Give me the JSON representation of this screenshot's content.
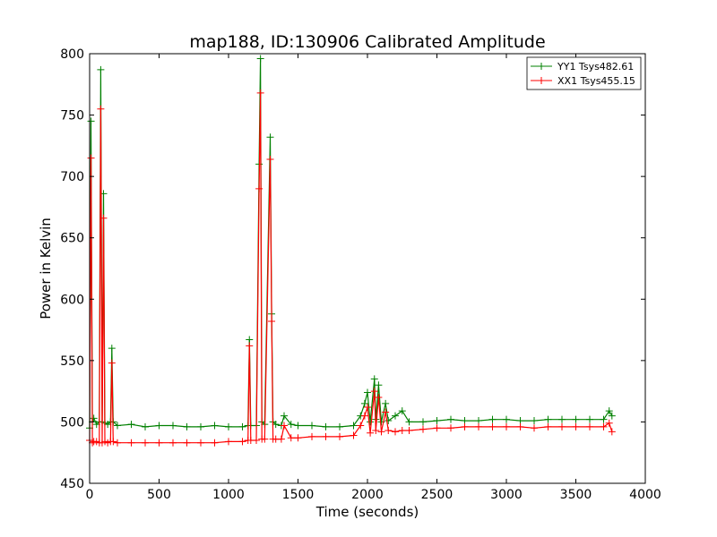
{
  "chart_data": {
    "type": "line",
    "title": "map188, ID:130906 Calibrated Amplitude",
    "xlabel": "Time (seconds)",
    "ylabel": "Power in Kelvin",
    "xlim": [
      0,
      4000
    ],
    "ylim": [
      450,
      800
    ],
    "xticks": [
      "0",
      "500",
      "1000",
      "1500",
      "2000",
      "2500",
      "3000",
      "3500",
      "4000"
    ],
    "yticks": [
      "450",
      "500",
      "550",
      "600",
      "650",
      "700",
      "750",
      "800"
    ],
    "grid": false,
    "legend_position": "top-right",
    "marker": "plus",
    "series": [
      {
        "name": "YY1 Tsys482.61",
        "color": "#008000",
        "x": [
          0,
          10,
          20,
          30,
          50,
          70,
          80,
          90,
          100,
          110,
          130,
          150,
          160,
          170,
          200,
          300,
          400,
          500,
          600,
          700,
          800,
          900,
          1000,
          1100,
          1140,
          1150,
          1160,
          1200,
          1220,
          1230,
          1240,
          1260,
          1300,
          1310,
          1320,
          1340,
          1380,
          1400,
          1450,
          1500,
          1600,
          1700,
          1800,
          1900,
          1950,
          1980,
          2000,
          2020,
          2050,
          2060,
          2080,
          2100,
          2130,
          2150,
          2200,
          2250,
          2300,
          2400,
          2500,
          2600,
          2700,
          2800,
          2900,
          3000,
          3100,
          3200,
          3300,
          3400,
          3500,
          3600,
          3700,
          3740,
          3760
        ],
        "y": [
          495,
          745,
          500,
          503,
          498,
          500,
          787,
          500,
          686,
          499,
          498,
          500,
          560,
          500,
          497,
          498,
          496,
          497,
          497,
          496,
          496,
          497,
          496,
          496,
          497,
          567,
          497,
          497,
          710,
          796,
          500,
          498,
          732,
          588,
          500,
          498,
          497,
          505,
          498,
          497,
          497,
          496,
          496,
          497,
          505,
          515,
          524,
          500,
          535,
          502,
          530,
          500,
          515,
          501,
          505,
          509,
          500,
          500,
          501,
          502,
          501,
          501,
          502,
          502,
          501,
          501,
          502,
          502,
          502,
          502,
          502,
          509,
          505
        ]
      },
      {
        "name": "XX1 Tsys455.15",
        "color": "#ff0000",
        "x": [
          0,
          10,
          20,
          30,
          50,
          70,
          80,
          90,
          100,
          110,
          130,
          150,
          160,
          170,
          200,
          300,
          400,
          500,
          600,
          700,
          800,
          900,
          1000,
          1100,
          1140,
          1150,
          1160,
          1200,
          1220,
          1230,
          1240,
          1260,
          1300,
          1310,
          1320,
          1340,
          1380,
          1400,
          1450,
          1500,
          1600,
          1700,
          1800,
          1900,
          1950,
          1980,
          2000,
          2020,
          2050,
          2060,
          2080,
          2100,
          2130,
          2150,
          2200,
          2250,
          2300,
          2400,
          2500,
          2600,
          2700,
          2800,
          2900,
          3000,
          3100,
          3200,
          3300,
          3400,
          3500,
          3600,
          3700,
          3740,
          3760
        ],
        "y": [
          485,
          715,
          483,
          484,
          484,
          483,
          755,
          483,
          666,
          484,
          483,
          484,
          548,
          484,
          483,
          483,
          483,
          483,
          483,
          483,
          483,
          483,
          484,
          484,
          485,
          562,
          485,
          485,
          690,
          768,
          486,
          486,
          714,
          582,
          486,
          486,
          486,
          497,
          487,
          487,
          488,
          488,
          488,
          489,
          497,
          505,
          512,
          491,
          525,
          493,
          520,
          492,
          508,
          493,
          492,
          493,
          493,
          494,
          495,
          495,
          496,
          496,
          496,
          496,
          496,
          495,
          496,
          496,
          496,
          496,
          496,
          499,
          492
        ]
      }
    ]
  }
}
